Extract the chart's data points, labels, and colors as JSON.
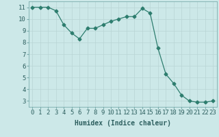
{
  "x": [
    0,
    1,
    2,
    3,
    4,
    5,
    6,
    7,
    8,
    9,
    10,
    11,
    12,
    13,
    14,
    15,
    16,
    17,
    18,
    19,
    20,
    21,
    22,
    23
  ],
  "y": [
    11,
    11,
    11,
    10.7,
    9.5,
    8.8,
    8.3,
    9.2,
    9.2,
    9.5,
    9.8,
    10.0,
    10.2,
    10.2,
    10.9,
    10.5,
    7.5,
    5.3,
    4.5,
    3.5,
    3.0,
    2.9,
    2.9,
    3.0
  ],
  "line_color": "#2d7d6e",
  "marker": "D",
  "marker_size": 2.5,
  "bg_color": "#cce8e8",
  "grid_color": "#b8d4d4",
  "xlabel": "Humidex (Indice chaleur)",
  "xlabel_fontsize": 7,
  "tick_fontsize": 6.5,
  "ylim": [
    2.5,
    11.5
  ],
  "xlim": [
    -0.5,
    23.5
  ],
  "yticks": [
    3,
    4,
    5,
    6,
    7,
    8,
    9,
    10,
    11
  ],
  "xticks": [
    0,
    1,
    2,
    3,
    4,
    5,
    6,
    7,
    8,
    9,
    10,
    11,
    12,
    13,
    14,
    15,
    16,
    17,
    18,
    19,
    20,
    21,
    22,
    23
  ]
}
